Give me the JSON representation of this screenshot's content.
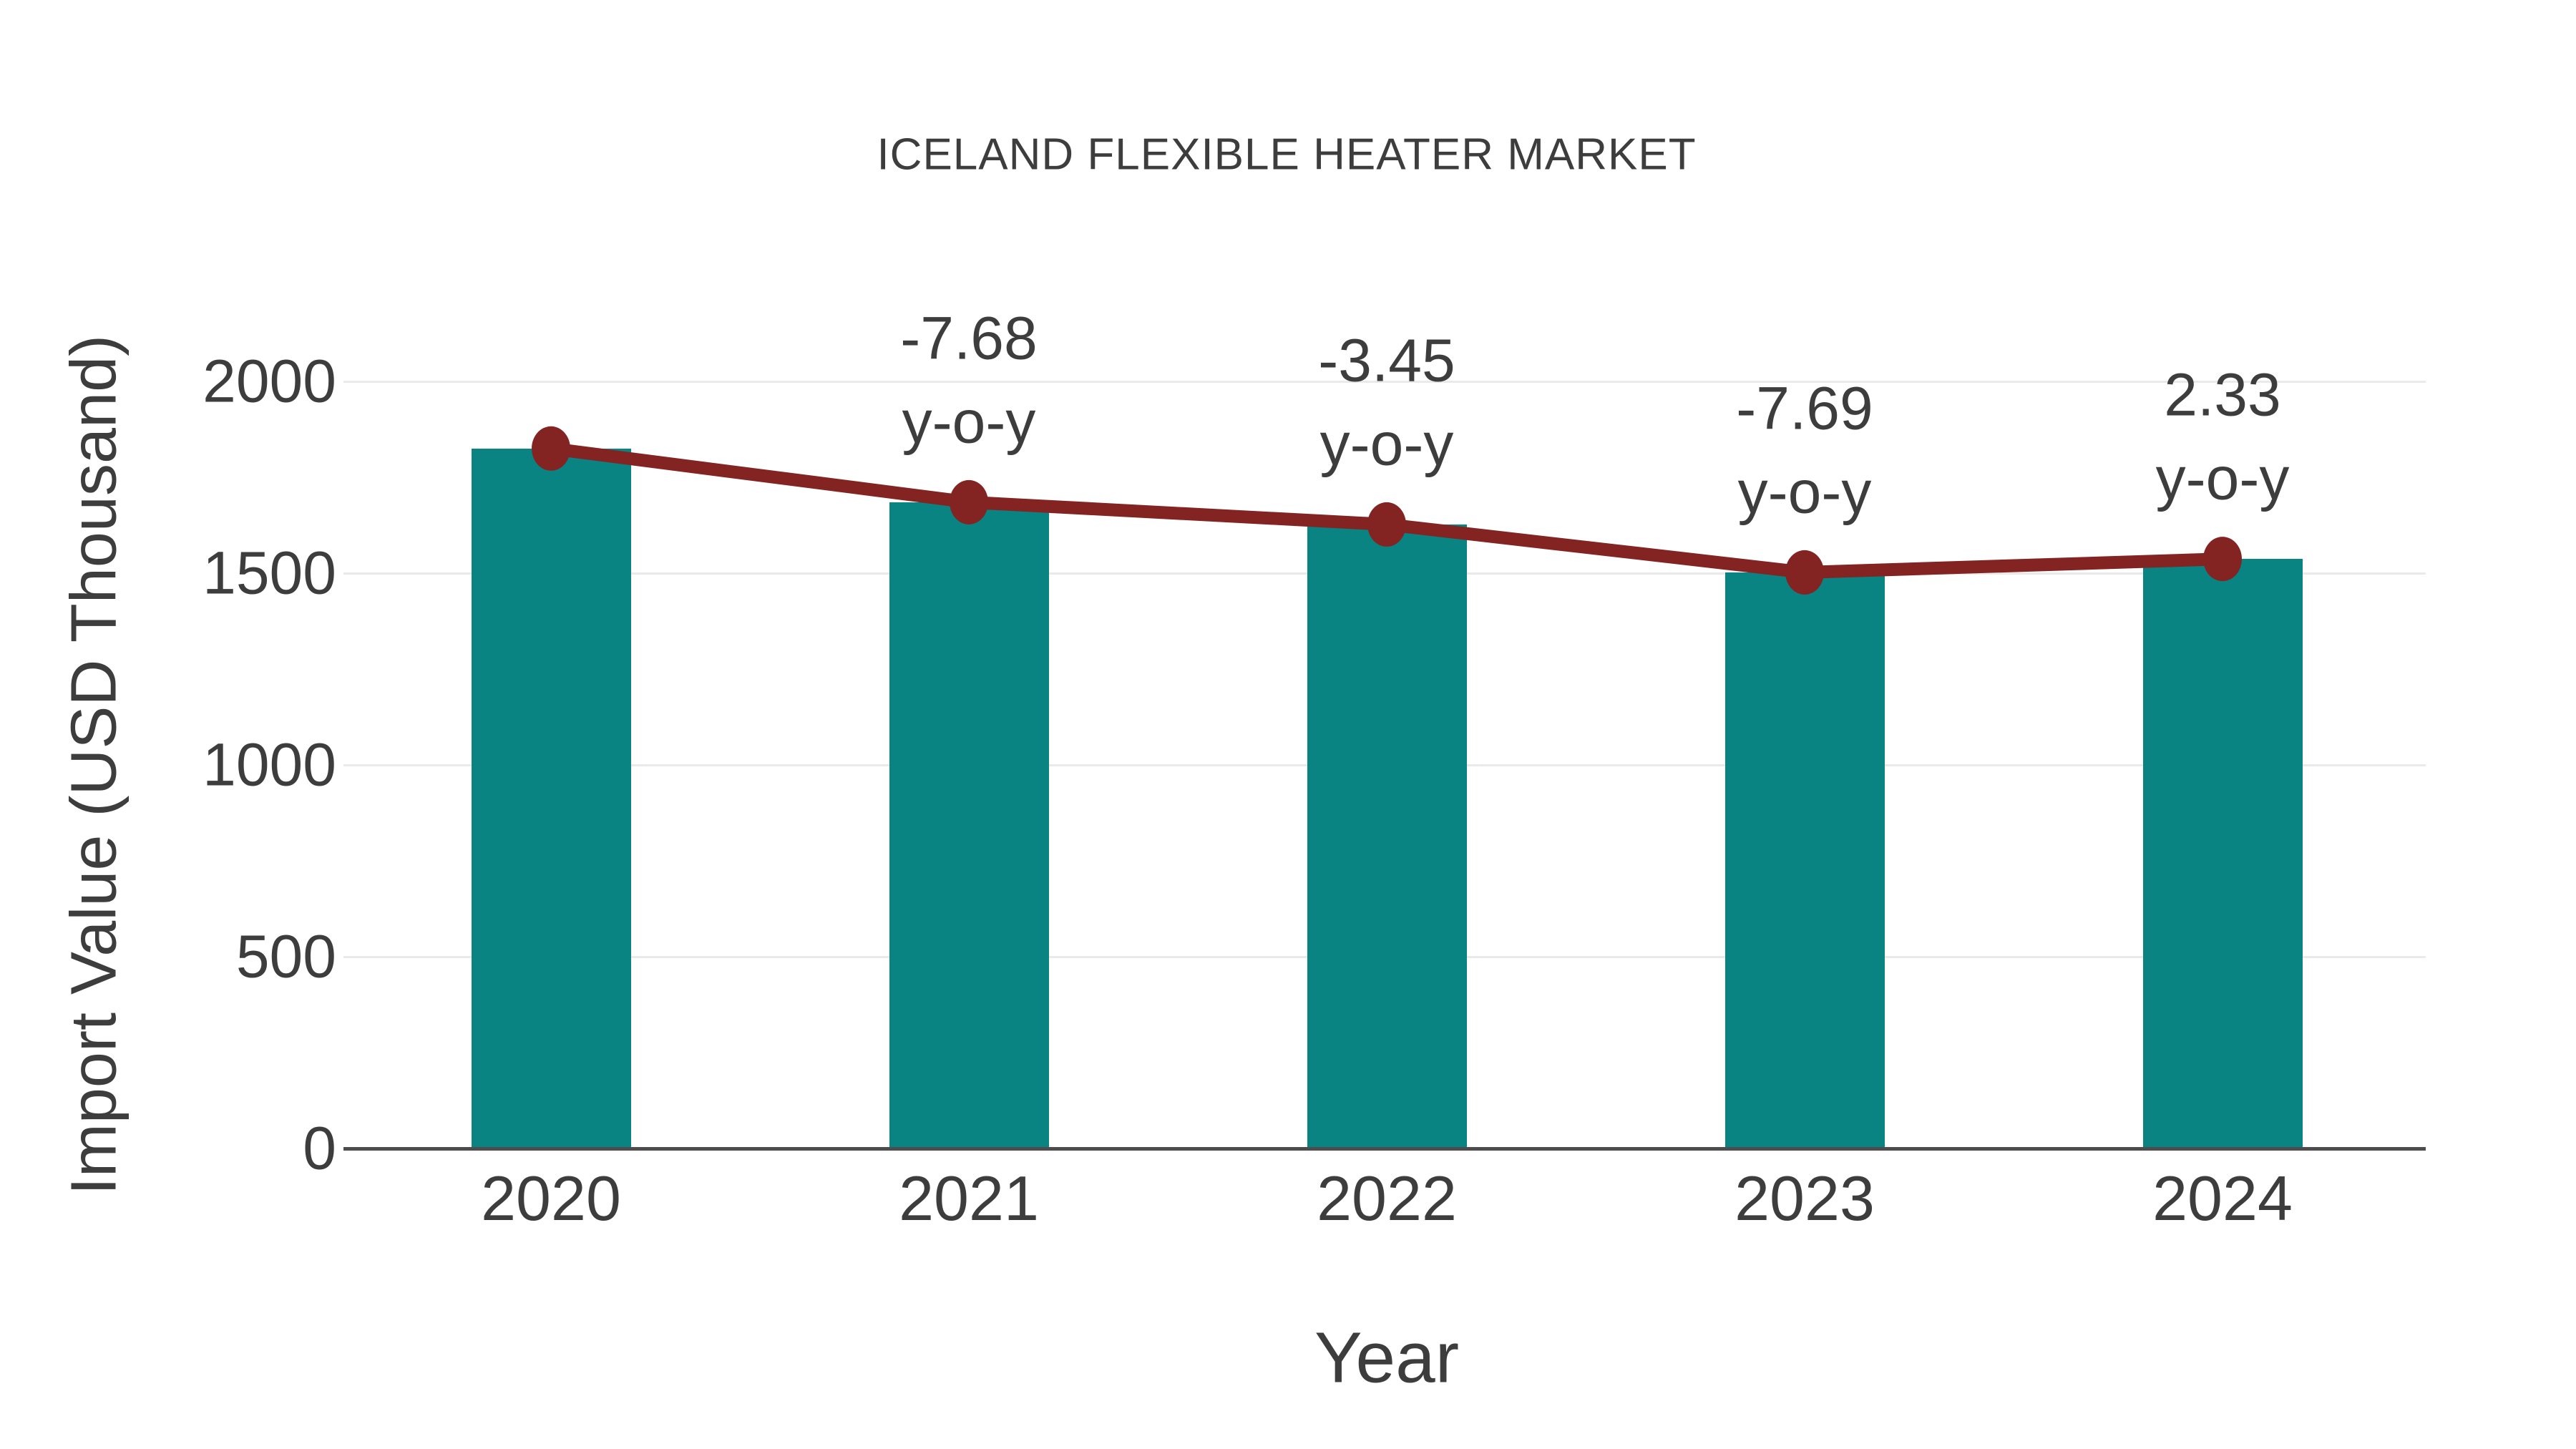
{
  "chart_data": {
    "type": "bar",
    "title": "ICELAND FLEXIBLE HEATER MARKET",
    "xlabel": "Year",
    "ylabel": "Import Value (USD Thousand)",
    "categories": [
      "2020",
      "2021",
      "2022",
      "2023",
      "2024"
    ],
    "series": [
      {
        "name": "import-value-bars",
        "type": "bar",
        "values": [
          1825,
          1685,
          1627,
          1502,
          1537
        ],
        "color": "#0a8383"
      },
      {
        "name": "import-value-trend",
        "type": "line",
        "values": [
          1825,
          1685,
          1627,
          1502,
          1537
        ],
        "color": "#832422"
      }
    ],
    "annotations": [
      {
        "category": "2021",
        "value": "-7.68",
        "suffix": "y-o-y"
      },
      {
        "category": "2022",
        "value": "-3.45",
        "suffix": "y-o-y"
      },
      {
        "category": "2023",
        "value": "-7.69",
        "suffix": "y-o-y"
      },
      {
        "category": "2024",
        "value": "2.33",
        "suffix": "y-o-y"
      }
    ],
    "ylim": [
      0,
      2000
    ],
    "yticks": [
      0,
      500,
      1000,
      1500,
      2000
    ],
    "grid": true,
    "legend": "none",
    "colors": {
      "bar": "#0a8383",
      "line": "#832422",
      "marker": "#832422",
      "text": "#3d3d3d",
      "gridline": "#eaeaea",
      "axis_line": "#4d4d4d",
      "background": "#ffffff"
    }
  }
}
